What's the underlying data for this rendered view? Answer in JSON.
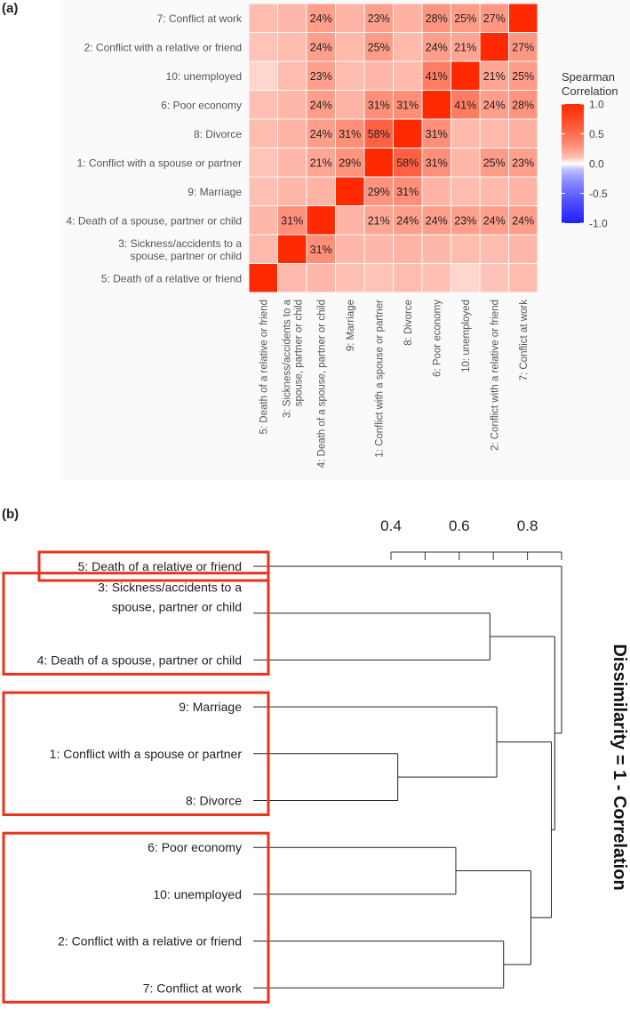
{
  "panel_a": {
    "label": "(a)",
    "chart_data": {
      "type": "heatmap",
      "row_labels": [
        "7: Conflict at work",
        "2: Conflict with a relative or friend",
        "10: unemployed",
        "6: Poor economy",
        "8: Divorce",
        "1: Conflict with a spouse or partner",
        "9: Marriage",
        "4: Death of a spouse, partner or child",
        [
          "3: Sickness/accidents to a",
          "spouse, partner or child"
        ],
        "5: Death of a relative or friend"
      ],
      "col_labels": [
        "5: Death of a relative or friend",
        [
          "3: Sickness/accidents to a",
          "spouse, partner or child"
        ],
        "4: Death of a spouse, partner or child",
        "9: Marriage",
        "1: Conflict with a spouse or partner",
        "8: Divorce",
        "6: Poor economy",
        "10: unemployed",
        "2: Conflict with a relative or friend",
        "7: Conflict at work"
      ],
      "values": [
        [
          0.12,
          0.14,
          0.24,
          0.15,
          0.23,
          0.16,
          0.28,
          0.25,
          0.27,
          1.0
        ],
        [
          0.1,
          0.12,
          0.24,
          0.13,
          0.25,
          0.13,
          0.24,
          0.21,
          1.0,
          0.27
        ],
        [
          0.05,
          0.12,
          0.23,
          0.12,
          0.14,
          0.13,
          0.41,
          1.0,
          0.21,
          0.25
        ],
        [
          0.11,
          0.14,
          0.24,
          0.15,
          0.31,
          0.31,
          1.0,
          0.41,
          0.24,
          0.28
        ],
        [
          0.12,
          0.15,
          0.24,
          0.31,
          0.58,
          1.0,
          0.31,
          0.13,
          0.13,
          0.16
        ],
        [
          0.1,
          0.14,
          0.21,
          0.29,
          1.0,
          0.58,
          0.31,
          0.14,
          0.25,
          0.23
        ],
        [
          0.11,
          0.14,
          0.15,
          1.0,
          0.29,
          0.31,
          0.15,
          0.12,
          0.13,
          0.15
        ],
        [
          0.14,
          0.31,
          1.0,
          0.15,
          0.21,
          0.24,
          0.24,
          0.23,
          0.24,
          0.24
        ],
        [
          0.13,
          1.0,
          0.31,
          0.14,
          0.14,
          0.15,
          0.14,
          0.12,
          0.12,
          0.14
        ],
        [
          1.0,
          0.13,
          0.14,
          0.11,
          0.1,
          0.12,
          0.11,
          0.05,
          0.1,
          0.12
        ]
      ],
      "cell_labels": [
        [
          "",
          "",
          "24%",
          "",
          "23%",
          "",
          "28%",
          "25%",
          "27%",
          ""
        ],
        [
          "",
          "",
          "24%",
          "",
          "25%",
          "",
          "24%",
          "21%",
          "",
          "27%"
        ],
        [
          "",
          "",
          "23%",
          "",
          "",
          "",
          "41%",
          "",
          "21%",
          "25%"
        ],
        [
          "",
          "",
          "24%",
          "",
          "31%",
          "31%",
          "",
          "41%",
          "24%",
          "28%"
        ],
        [
          "",
          "",
          "24%",
          "31%",
          "58%",
          "",
          "31%",
          "",
          "",
          ""
        ],
        [
          "",
          "",
          "21%",
          "29%",
          "",
          "58%",
          "31%",
          "",
          "25%",
          "23%"
        ],
        [
          "",
          "",
          "",
          "",
          "29%",
          "31%",
          "",
          "",
          "",
          ""
        ],
        [
          "",
          "31%",
          "",
          "",
          "21%",
          "24%",
          "24%",
          "23%",
          "24%",
          "24%"
        ],
        [
          "",
          "",
          "31%",
          "",
          "",
          "",
          "",
          "",
          "",
          ""
        ],
        [
          "",
          "",
          "",
          "",
          "",
          "",
          "",
          "",
          "",
          ""
        ]
      ],
      "legend": {
        "title_line1": "Spearman",
        "title_line2": "Correlation",
        "ticks": [
          "1.0",
          "0.5",
          "0.0",
          "-0.5",
          "-1.0"
        ],
        "tick_values": [
          1.0,
          0.5,
          0.0,
          -0.5,
          -1.0
        ],
        "range": [
          -1.0,
          1.0
        ],
        "colors": {
          "high": "#ff2a00",
          "mid": "#ffffff",
          "low": "#1f1fff"
        }
      }
    }
  },
  "panel_b": {
    "label": "(b)",
    "chart_data": {
      "type": "dendrogram",
      "axis_ticks": [
        "0.4",
        "0.6",
        "0.8"
      ],
      "axis_tick_values": [
        0.4,
        0.6,
        0.8
      ],
      "axis_range": [
        0.4,
        0.9
      ],
      "axis_title": "Dissimilarity = 1 - Correlation",
      "leaves": [
        [
          "5: Death of a relative or friend"
        ],
        [
          "3: Sickness/accidents to a",
          "spouse, partner or child"
        ],
        [
          "4: Death of a spouse, partner or child"
        ],
        [
          "9: Marriage"
        ],
        [
          "1: Conflict with a spouse or partner"
        ],
        [
          "8: Divorce"
        ],
        [
          "6: Poor economy"
        ],
        [
          "10: unemployed"
        ],
        [
          "2: Conflict with a relative or friend"
        ],
        [
          "7: Conflict at work"
        ]
      ],
      "merges": [
        {
          "left": "L4",
          "right": "L5",
          "height": 0.42
        },
        {
          "left": "L6",
          "right": "L7",
          "height": 0.59
        },
        {
          "left": "L8",
          "right": "L9",
          "height": 0.73
        },
        {
          "left": "L1",
          "right": "L2",
          "height": 0.69
        },
        {
          "left": "L3",
          "right": "M0",
          "height": 0.71
        },
        {
          "left": "M1",
          "right": "M2",
          "height": 0.81
        },
        {
          "left": "M4",
          "right": "M5",
          "height": 0.87
        },
        {
          "left": "M3",
          "right": "M6",
          "height": 0.88
        },
        {
          "left": "L0",
          "right": "M7",
          "height": 0.9
        }
      ],
      "groups": [
        [
          0
        ],
        [
          1,
          2
        ],
        [
          3,
          4,
          5
        ],
        [
          6,
          7,
          8,
          9
        ]
      ],
      "group_box_color": "#e8341c"
    }
  }
}
